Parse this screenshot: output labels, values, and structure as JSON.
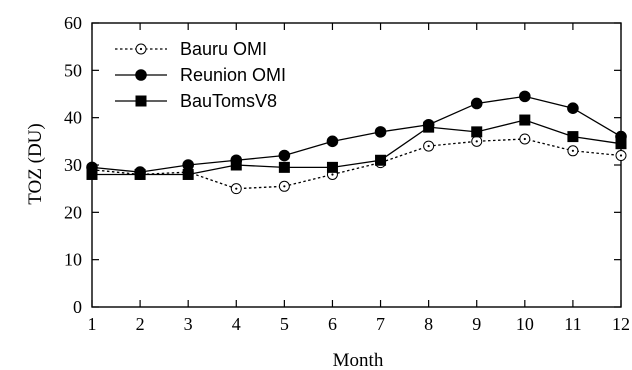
{
  "chart_data": {
    "type": "line",
    "title": "",
    "xlabel": "Month",
    "ylabel": "TOZ (DU)",
    "x": [
      1,
      2,
      3,
      4,
      5,
      6,
      7,
      8,
      9,
      10,
      11,
      12
    ],
    "xlim": [
      1,
      12
    ],
    "ylim": [
      0,
      60
    ],
    "xticks": [
      "1",
      "2",
      "3",
      "4",
      "5",
      "6",
      "7",
      "8",
      "9",
      "10",
      "11",
      "12"
    ],
    "yticks": [
      "0",
      "10",
      "20",
      "30",
      "40",
      "50",
      "60"
    ],
    "grid": false,
    "legend_position": "top-left",
    "series": [
      {
        "name": "Bauru OMI",
        "style": "dotted",
        "marker": "open-circle",
        "values": [
          29,
          28,
          28.5,
          25,
          25.5,
          28,
          30.5,
          34,
          35,
          35.5,
          33,
          32
        ]
      },
      {
        "name": "Reunion OMI",
        "style": "solid",
        "marker": "filled-circle",
        "values": [
          29.5,
          28.5,
          30,
          31,
          32,
          35,
          37,
          38.5,
          43,
          44.5,
          42,
          36
        ]
      },
      {
        "name": "BauTomsV8",
        "style": "solid",
        "marker": "filled-square",
        "values": [
          28,
          28,
          28,
          30,
          29.5,
          29.5,
          31,
          38,
          37,
          39.5,
          36,
          34.5
        ]
      }
    ]
  }
}
